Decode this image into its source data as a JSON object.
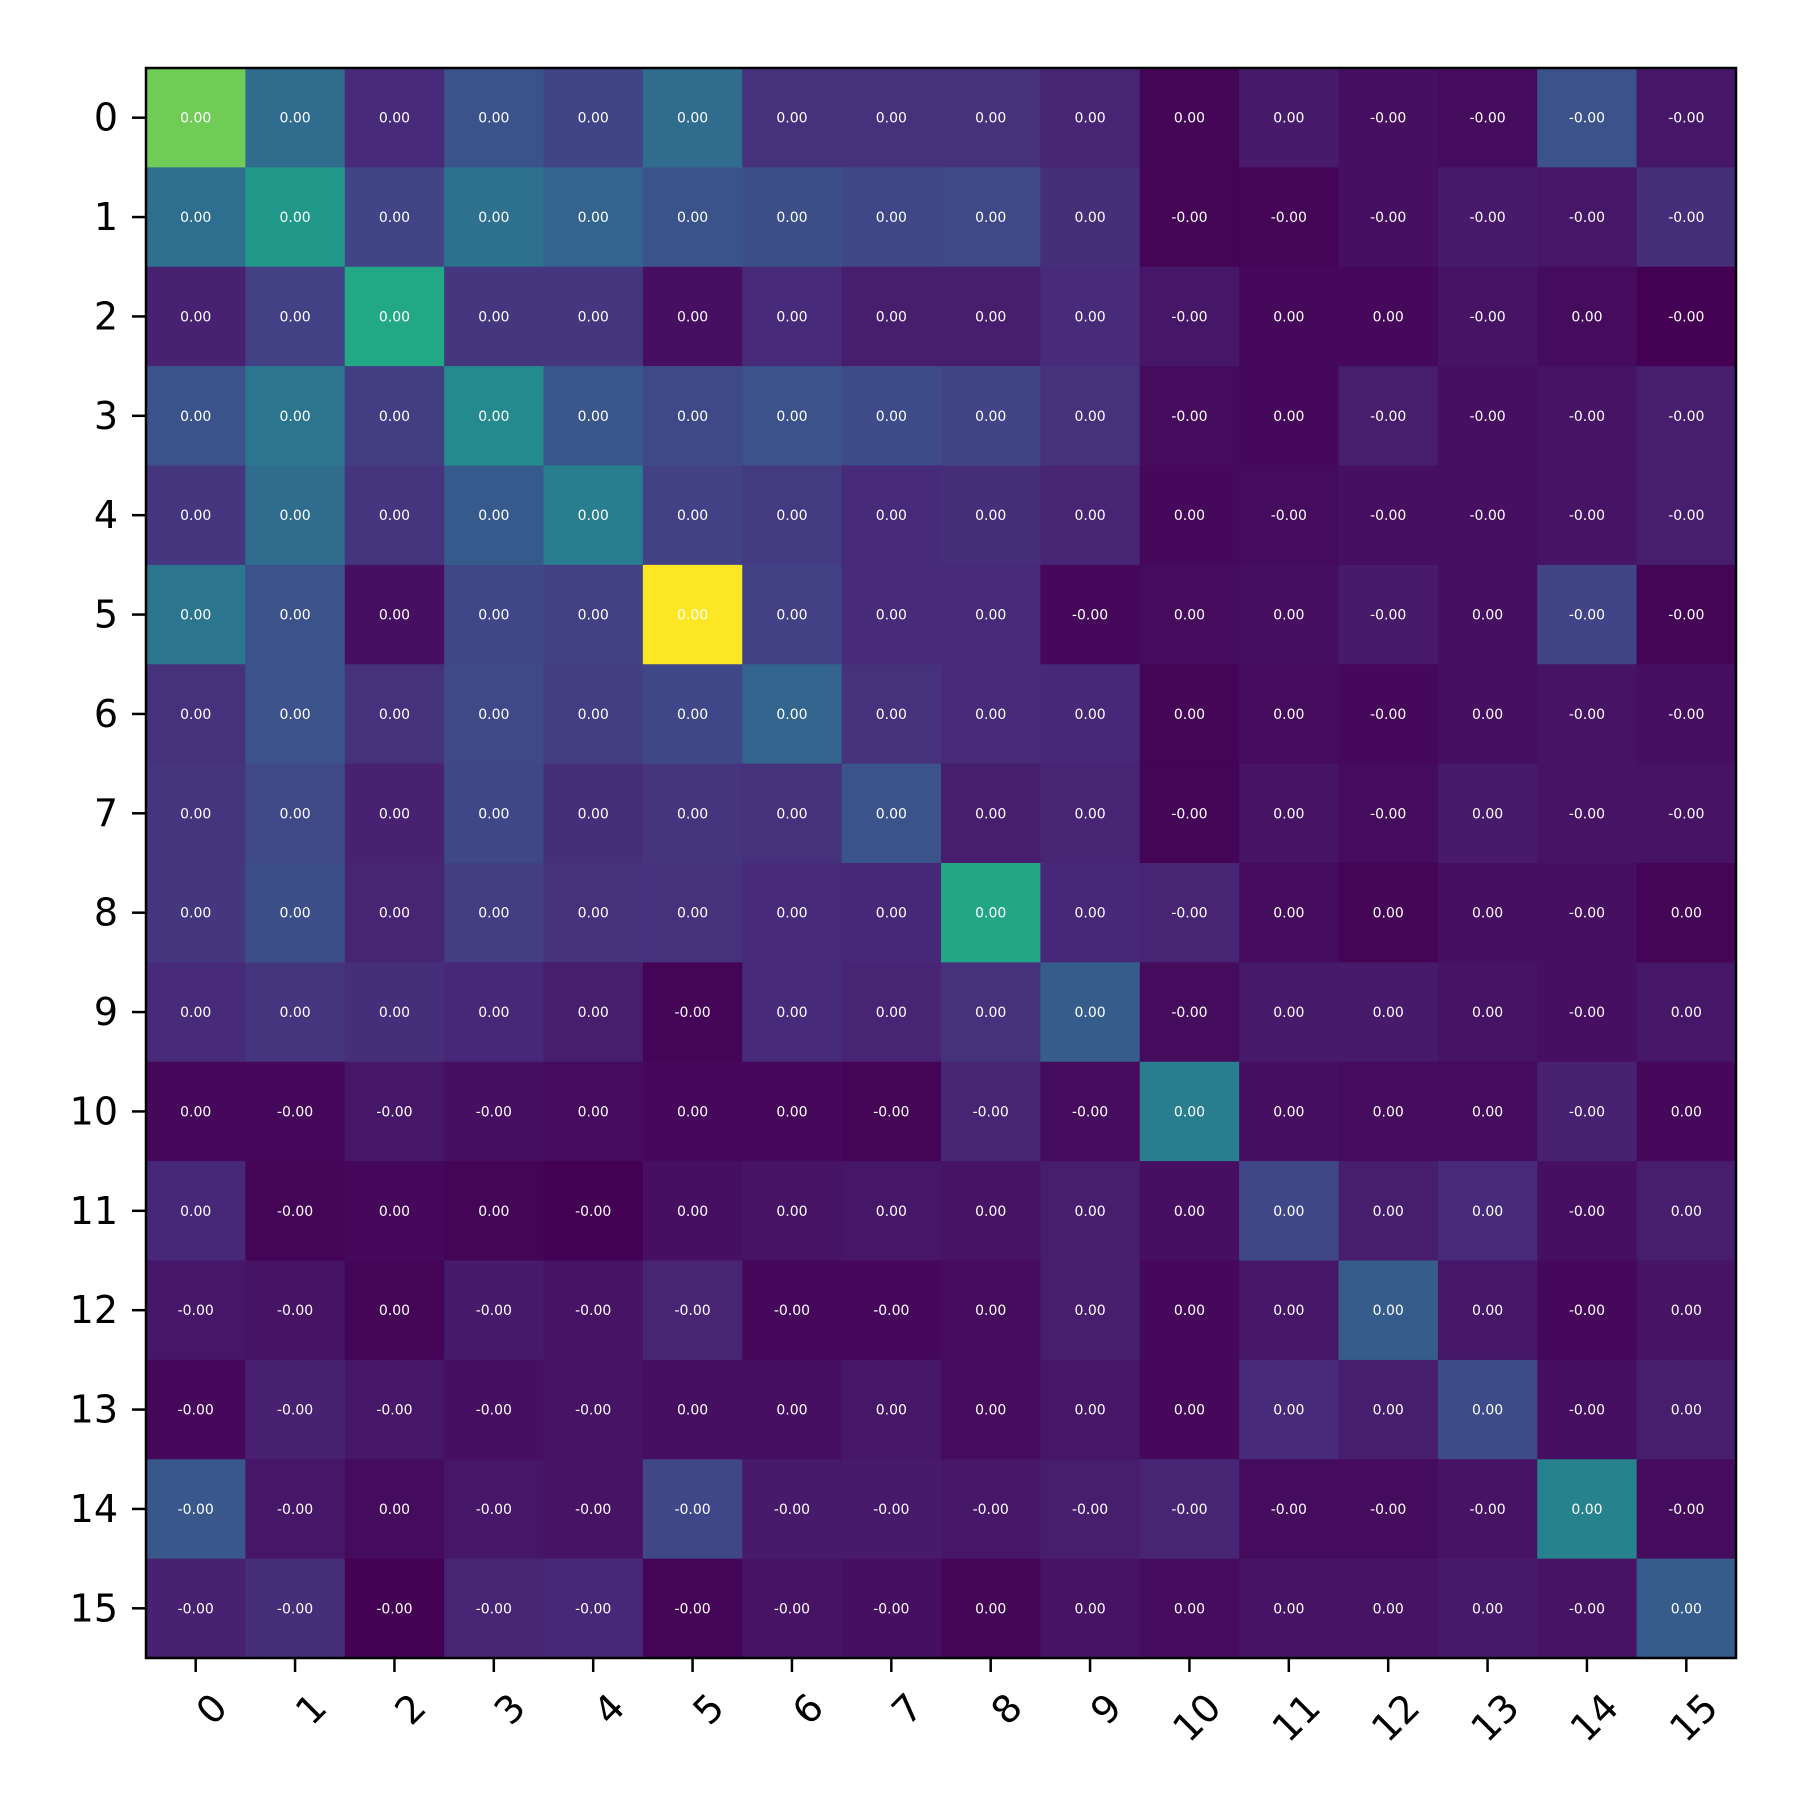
{
  "chart_data": {
    "type": "heatmap",
    "title": "",
    "xlabel": "",
    "ylabel": "",
    "x_tick_labels": [
      "0",
      "1",
      "2",
      "3",
      "4",
      "5",
      "6",
      "7",
      "8",
      "9",
      "10",
      "11",
      "12",
      "13",
      "14",
      "15"
    ],
    "y_tick_labels": [
      "0",
      "1",
      "2",
      "3",
      "4",
      "5",
      "6",
      "7",
      "8",
      "9",
      "10",
      "11",
      "12",
      "13",
      "14",
      "15"
    ],
    "colormap": "viridis",
    "grid": false,
    "value_range": [
      0,
      1
    ],
    "cell_labels": [
      [
        "0.00",
        "0.00",
        "0.00",
        "0.00",
        "0.00",
        "0.00",
        "0.00",
        "0.00",
        "0.00",
        "0.00",
        "0.00",
        "0.00",
        "-0.00",
        "-0.00",
        "-0.00",
        "-0.00"
      ],
      [
        "0.00",
        "0.00",
        "0.00",
        "0.00",
        "0.00",
        "0.00",
        "0.00",
        "0.00",
        "0.00",
        "0.00",
        "-0.00",
        "-0.00",
        "-0.00",
        "-0.00",
        "-0.00",
        "-0.00"
      ],
      [
        "0.00",
        "0.00",
        "0.00",
        "0.00",
        "0.00",
        "0.00",
        "0.00",
        "0.00",
        "0.00",
        "0.00",
        "-0.00",
        "0.00",
        "0.00",
        "-0.00",
        "0.00",
        "-0.00"
      ],
      [
        "0.00",
        "0.00",
        "0.00",
        "0.00",
        "0.00",
        "0.00",
        "0.00",
        "0.00",
        "0.00",
        "0.00",
        "-0.00",
        "0.00",
        "-0.00",
        "-0.00",
        "-0.00",
        "-0.00"
      ],
      [
        "0.00",
        "0.00",
        "0.00",
        "0.00",
        "0.00",
        "0.00",
        "0.00",
        "0.00",
        "0.00",
        "0.00",
        "0.00",
        "-0.00",
        "-0.00",
        "-0.00",
        "-0.00",
        "-0.00"
      ],
      [
        "0.00",
        "0.00",
        "0.00",
        "0.00",
        "0.00",
        "0.00",
        "0.00",
        "0.00",
        "0.00",
        "-0.00",
        "0.00",
        "0.00",
        "-0.00",
        "0.00",
        "-0.00",
        "-0.00"
      ],
      [
        "0.00",
        "0.00",
        "0.00",
        "0.00",
        "0.00",
        "0.00",
        "0.00",
        "0.00",
        "0.00",
        "0.00",
        "0.00",
        "0.00",
        "-0.00",
        "0.00",
        "-0.00",
        "-0.00"
      ],
      [
        "0.00",
        "0.00",
        "0.00",
        "0.00",
        "0.00",
        "0.00",
        "0.00",
        "0.00",
        "0.00",
        "0.00",
        "-0.00",
        "0.00",
        "-0.00",
        "0.00",
        "-0.00",
        "-0.00"
      ],
      [
        "0.00",
        "0.00",
        "0.00",
        "0.00",
        "0.00",
        "0.00",
        "0.00",
        "0.00",
        "0.00",
        "0.00",
        "-0.00",
        "0.00",
        "0.00",
        "0.00",
        "-0.00",
        "0.00"
      ],
      [
        "0.00",
        "0.00",
        "0.00",
        "0.00",
        "0.00",
        "-0.00",
        "0.00",
        "0.00",
        "0.00",
        "0.00",
        "-0.00",
        "0.00",
        "0.00",
        "0.00",
        "-0.00",
        "0.00"
      ],
      [
        "0.00",
        "-0.00",
        "-0.00",
        "-0.00",
        "0.00",
        "0.00",
        "0.00",
        "-0.00",
        "-0.00",
        "-0.00",
        "0.00",
        "0.00",
        "0.00",
        "0.00",
        "-0.00",
        "0.00"
      ],
      [
        "0.00",
        "-0.00",
        "0.00",
        "0.00",
        "-0.00",
        "0.00",
        "0.00",
        "0.00",
        "0.00",
        "0.00",
        "0.00",
        "0.00",
        "0.00",
        "0.00",
        "-0.00",
        "0.00"
      ],
      [
        "-0.00",
        "-0.00",
        "0.00",
        "-0.00",
        "-0.00",
        "-0.00",
        "-0.00",
        "-0.00",
        "0.00",
        "0.00",
        "0.00",
        "0.00",
        "0.00",
        "0.00",
        "-0.00",
        "0.00"
      ],
      [
        "-0.00",
        "-0.00",
        "-0.00",
        "-0.00",
        "-0.00",
        "0.00",
        "0.00",
        "0.00",
        "0.00",
        "0.00",
        "0.00",
        "0.00",
        "0.00",
        "0.00",
        "-0.00",
        "0.00"
      ],
      [
        "-0.00",
        "-0.00",
        "0.00",
        "-0.00",
        "-0.00",
        "-0.00",
        "-0.00",
        "-0.00",
        "-0.00",
        "-0.00",
        "-0.00",
        "-0.00",
        "-0.00",
        "-0.00",
        "0.00",
        "-0.00"
      ],
      [
        "-0.00",
        "-0.00",
        "-0.00",
        "-0.00",
        "-0.00",
        "-0.00",
        "-0.00",
        "-0.00",
        "0.00",
        "0.00",
        "0.00",
        "0.00",
        "0.00",
        "0.00",
        "-0.00",
        "0.00"
      ]
    ],
    "color_intensity": [
      [
        0.78,
        0.35,
        0.12,
        0.26,
        0.2,
        0.35,
        0.14,
        0.14,
        0.14,
        0.1,
        0.01,
        0.07,
        0.04,
        0.03,
        0.25,
        0.06
      ],
      [
        0.36,
        0.53,
        0.2,
        0.37,
        0.32,
        0.26,
        0.24,
        0.21,
        0.22,
        0.13,
        0.01,
        0.01,
        0.04,
        0.07,
        0.06,
        0.13
      ],
      [
        0.09,
        0.19,
        0.6,
        0.16,
        0.16,
        0.04,
        0.12,
        0.08,
        0.08,
        0.12,
        0.06,
        0.02,
        0.02,
        0.05,
        0.03,
        0.0
      ],
      [
        0.26,
        0.39,
        0.18,
        0.47,
        0.27,
        0.22,
        0.25,
        0.23,
        0.2,
        0.14,
        0.03,
        0.02,
        0.08,
        0.04,
        0.05,
        0.08
      ],
      [
        0.16,
        0.35,
        0.15,
        0.28,
        0.42,
        0.19,
        0.17,
        0.12,
        0.13,
        0.1,
        0.02,
        0.03,
        0.04,
        0.04,
        0.05,
        0.08
      ],
      [
        0.39,
        0.25,
        0.04,
        0.21,
        0.19,
        1.0,
        0.19,
        0.12,
        0.12,
        0.02,
        0.03,
        0.04,
        0.07,
        0.04,
        0.2,
        0.01
      ],
      [
        0.14,
        0.25,
        0.14,
        0.22,
        0.18,
        0.21,
        0.32,
        0.14,
        0.12,
        0.11,
        0.01,
        0.03,
        0.02,
        0.04,
        0.05,
        0.04
      ],
      [
        0.15,
        0.22,
        0.09,
        0.21,
        0.13,
        0.15,
        0.14,
        0.26,
        0.08,
        0.1,
        0.01,
        0.05,
        0.03,
        0.07,
        0.05,
        0.05
      ],
      [
        0.16,
        0.24,
        0.1,
        0.18,
        0.14,
        0.14,
        0.12,
        0.11,
        0.59,
        0.11,
        0.1,
        0.03,
        0.01,
        0.04,
        0.04,
        0.01
      ],
      [
        0.12,
        0.15,
        0.13,
        0.11,
        0.08,
        0.01,
        0.12,
        0.1,
        0.14,
        0.29,
        0.03,
        0.07,
        0.07,
        0.05,
        0.04,
        0.06
      ],
      [
        0.02,
        0.02,
        0.06,
        0.04,
        0.03,
        0.02,
        0.02,
        0.01,
        0.1,
        0.03,
        0.42,
        0.04,
        0.03,
        0.03,
        0.09,
        0.02
      ],
      [
        0.11,
        0.01,
        0.02,
        0.01,
        0.0,
        0.04,
        0.05,
        0.06,
        0.05,
        0.08,
        0.04,
        0.21,
        0.08,
        0.12,
        0.04,
        0.08
      ],
      [
        0.06,
        0.05,
        0.01,
        0.07,
        0.05,
        0.1,
        0.02,
        0.02,
        0.03,
        0.08,
        0.02,
        0.06,
        0.29,
        0.06,
        0.02,
        0.05
      ],
      [
        0.02,
        0.09,
        0.06,
        0.04,
        0.05,
        0.04,
        0.04,
        0.06,
        0.03,
        0.06,
        0.02,
        0.12,
        0.08,
        0.23,
        0.04,
        0.08
      ],
      [
        0.27,
        0.06,
        0.03,
        0.06,
        0.05,
        0.21,
        0.07,
        0.07,
        0.06,
        0.08,
        0.1,
        0.03,
        0.03,
        0.05,
        0.44,
        0.03
      ],
      [
        0.09,
        0.13,
        0.0,
        0.1,
        0.11,
        0.01,
        0.05,
        0.04,
        0.01,
        0.05,
        0.03,
        0.05,
        0.05,
        0.07,
        0.05,
        0.29
      ]
    ]
  }
}
